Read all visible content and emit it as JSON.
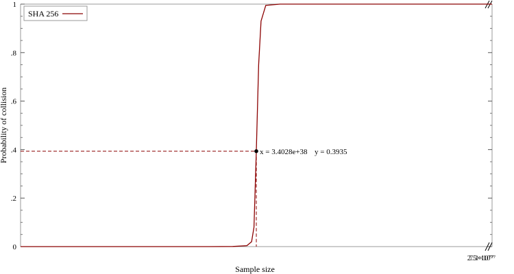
{
  "chart_data": {
    "type": "line",
    "title": "",
    "xlabel": "Sample size",
    "ylabel": "Probability of collision",
    "ylim": [
      0,
      1
    ],
    "y_tick_labels": [
      "0",
      ".2",
      ".4",
      ".6",
      ".8",
      "1"
    ],
    "y_tick_values": [
      0,
      0.2,
      0.4,
      0.6,
      0.8,
      1
    ],
    "x_axis_break_label": "2.5×10⁷⁷",
    "x_axis_break_label_overlap": "7.1×10⁷⁷",
    "legend_position": "top-left",
    "grid": false,
    "axis_break": true,
    "series": [
      {
        "name": "SHA 256",
        "color": "#8b0000",
        "x": [
          0,
          0.1,
          0.2,
          0.3,
          0.4,
          0.45,
          0.48,
          0.49,
          0.495,
          0.5,
          0.505,
          0.51,
          0.52,
          0.55,
          0.6,
          0.7,
          0.8,
          1.0
        ],
        "y": [
          0,
          0,
          0,
          0,
          0,
          0.0005,
          0.004,
          0.02,
          0.08,
          0.3935,
          0.75,
          0.93,
          0.995,
          1,
          1,
          1,
          1,
          1
        ]
      }
    ],
    "annotation": {
      "point_y": 0.3935,
      "x_text": "x = 3.4028e+38",
      "y_text": "y = 0.3935"
    }
  }
}
